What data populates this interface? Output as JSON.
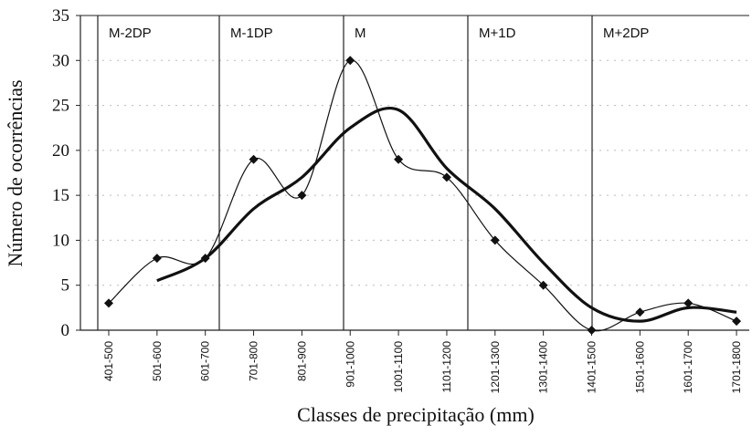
{
  "chart_data": {
    "type": "line",
    "xlabel": "Classes de precipitação (mm)",
    "ylabel": "Número de ocorrências",
    "categories": [
      "401-500",
      "501-600",
      "601-700",
      "701-800",
      "801-900",
      "901-1000",
      "1001-1100",
      "1101-1200",
      "1201-1300",
      "1301-1400",
      "1401-1500",
      "1501-1600",
      "1601-1700",
      "1701-1800"
    ],
    "series": [
      {
        "color": "#111111",
        "values": [
          3,
          8,
          8,
          19,
          15,
          30,
          19,
          17,
          10,
          5,
          0,
          2,
          3,
          1
        ]
      },
      {
        "color": "#111111",
        "values": [
          null,
          5.5,
          8,
          13.5,
          17,
          22.5,
          24.5,
          18,
          13.5,
          7.5,
          2.5,
          1,
          2.5,
          2
        ]
      }
    ],
    "annotations": [
      "M-2DP",
      "M-1DP",
      "M",
      "M+1D",
      "M+2DP"
    ],
    "ylim": [
      0,
      35
    ],
    "yticks": [
      0,
      5,
      10,
      15,
      20,
      25,
      30,
      35
    ],
    "grid": true
  }
}
